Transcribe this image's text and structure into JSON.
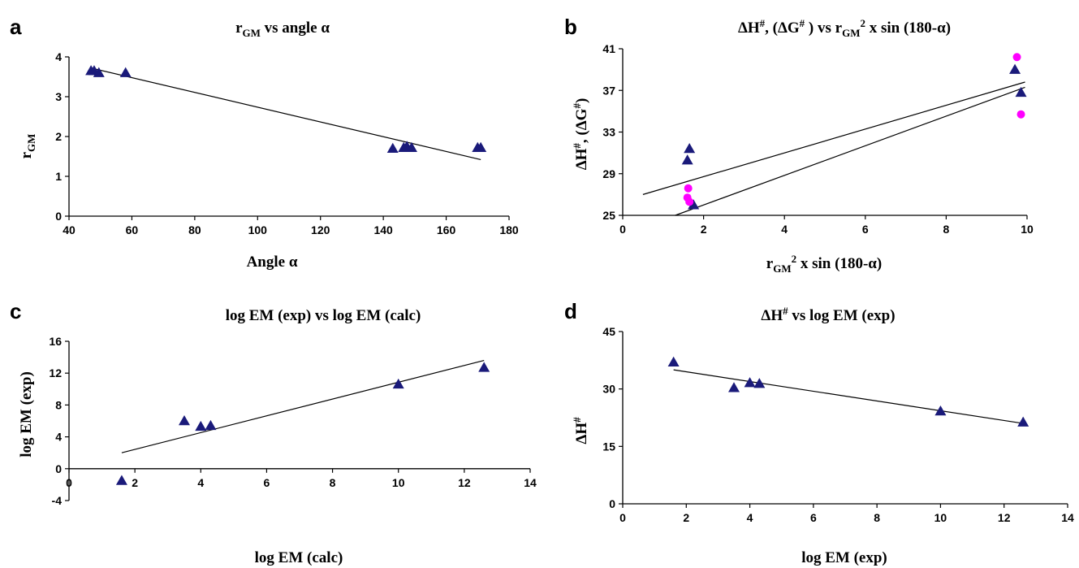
{
  "chart_data": [
    {
      "id": "a",
      "type": "scatter",
      "panel_letter": "a",
      "title_main": "r",
      "title_sub": "GM",
      "title_rest": " vs angle α",
      "xlabel": "Angle α",
      "ylabel_main": "r",
      "ylabel_sub": "GM",
      "xlim": [
        40,
        180
      ],
      "ylim": [
        0,
        4
      ],
      "xticks": [
        40,
        60,
        80,
        100,
        120,
        140,
        160,
        180
      ],
      "yticks": [
        0,
        1,
        2,
        3,
        4
      ],
      "series": [
        {
          "marker": "triangle",
          "color": "#1a1a7a",
          "x": [
            47,
            48,
            49.5,
            58,
            143,
            146.5,
            147.5,
            149,
            170,
            171
          ],
          "y": [
            3.65,
            3.65,
            3.6,
            3.6,
            1.7,
            1.72,
            1.75,
            1.72,
            1.72,
            1.72
          ]
        }
      ],
      "trendlines": [
        {
          "x": [
            47,
            171
          ],
          "y": [
            3.72,
            1.42
          ]
        }
      ]
    },
    {
      "id": "b",
      "type": "scatter",
      "panel_letter": "b",
      "title_text": "ΔH#, (ΔG#) vs rGM2 x sin (180-α)",
      "xlabel_text": "rGM2 x sin (180-α)",
      "ylabel_text": "ΔH#, (ΔG#)",
      "xlim": [
        0,
        10
      ],
      "ylim": [
        25,
        41
      ],
      "xticks": [
        0,
        2,
        4,
        6,
        8,
        10
      ],
      "yticks": [
        25,
        29,
        33,
        37,
        41
      ],
      "series": [
        {
          "marker": "triangle",
          "color": "#1a1a7a",
          "x": [
            1.6,
            1.65,
            1.75,
            9.7,
            9.85
          ],
          "y": [
            30.3,
            31.4,
            26.0,
            39.0,
            36.8
          ]
        },
        {
          "marker": "circle",
          "color": "#ff00ff",
          "x": [
            1.62,
            1.6,
            1.65,
            9.75,
            9.85
          ],
          "y": [
            27.6,
            26.7,
            26.3,
            40.2,
            34.7
          ]
        }
      ],
      "trendlines": [
        {
          "x": [
            0.5,
            9.95
          ],
          "y": [
            27.0,
            37.8
          ]
        },
        {
          "x": [
            1.3,
            9.95
          ],
          "y": [
            25.0,
            37.3
          ]
        }
      ]
    },
    {
      "id": "c",
      "type": "scatter",
      "panel_letter": "c",
      "title_text": "log EM (exp) vs log EM (calc)",
      "xlabel_text": "log EM (calc)",
      "ylabel_text": "log EM (exp)",
      "xlim": [
        0,
        14
      ],
      "ylim": [
        -4,
        16
      ],
      "xticks": [
        0,
        2,
        4,
        6,
        8,
        10,
        12,
        14
      ],
      "yticks": [
        -4,
        0,
        4,
        8,
        12,
        16
      ],
      "series": [
        {
          "marker": "triangle",
          "color": "#1a1a7a",
          "x": [
            1.6,
            3.5,
            4.0,
            4.3,
            10.0,
            12.6
          ],
          "y": [
            -1.5,
            6.0,
            5.3,
            5.4,
            10.6,
            12.7
          ]
        }
      ],
      "trendlines": [
        {
          "x": [
            1.6,
            12.6
          ],
          "y": [
            2.0,
            13.6
          ]
        }
      ]
    },
    {
      "id": "d",
      "type": "scatter",
      "panel_letter": "d",
      "title_text": "ΔH# vs log EM (exp)",
      "xlabel_text": "log EM (exp)",
      "ylabel_text": "ΔH#",
      "xlim": [
        0,
        14
      ],
      "ylim": [
        0,
        45
      ],
      "xticks": [
        0,
        2,
        4,
        6,
        8,
        10,
        12,
        14
      ],
      "yticks": [
        0,
        15,
        30,
        45
      ],
      "series": [
        {
          "marker": "triangle",
          "color": "#1a1a7a",
          "x": [
            1.6,
            3.5,
            4.0,
            4.3,
            10.0,
            12.6
          ],
          "y": [
            37.0,
            30.3,
            31.6,
            31.4,
            24.2,
            21.3
          ]
        }
      ],
      "trendlines": [
        {
          "x": [
            1.6,
            12.6
          ],
          "y": [
            35.0,
            21.0
          ]
        }
      ]
    }
  ]
}
